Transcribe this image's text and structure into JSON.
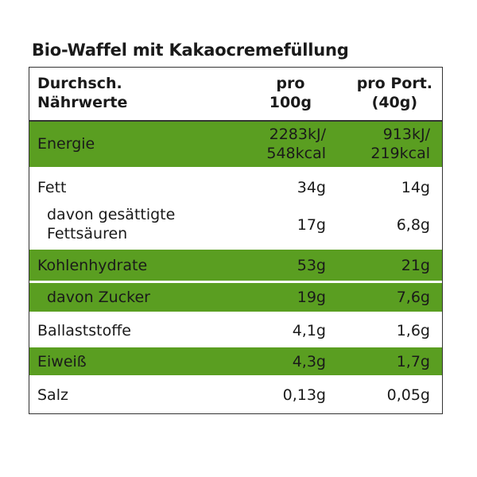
{
  "title": "Bio-Waffel mit Kakaocremefüllung",
  "header": {
    "col0": [
      "Durchsch.",
      "Nährwerte"
    ],
    "col1": [
      "pro",
      "100g"
    ],
    "col2": [
      "pro Port.",
      "(40g)"
    ]
  },
  "rows": [
    {
      "name": [
        "Energie"
      ],
      "v100": [
        "2283kJ/",
        "548kcal"
      ],
      "vport": [
        "913kJ/",
        "219kcal"
      ],
      "highlight": true
    },
    {
      "name": [
        "Fett"
      ],
      "v100": [
        "34g"
      ],
      "vport": [
        "14g"
      ],
      "highlight": false
    },
    {
      "name": [
        "davon gesättigte",
        "Fettsäuren"
      ],
      "v100": [
        "17g"
      ],
      "vport": [
        "6,8g"
      ],
      "highlight": false,
      "indent": true
    },
    {
      "name": [
        "Kohlenhydrate"
      ],
      "v100": [
        "53g"
      ],
      "vport": [
        "21g"
      ],
      "highlight": true
    },
    {
      "name": [
        "davon Zucker"
      ],
      "v100": [
        "19g"
      ],
      "vport": [
        "7,6g"
      ],
      "highlight": true,
      "indent": true
    },
    {
      "name": [
        "Ballaststoffe"
      ],
      "v100": [
        "4,1g"
      ],
      "vport": [
        "1,6g"
      ],
      "highlight": false
    },
    {
      "name": [
        "Eiweiß"
      ],
      "v100": [
        "4,3g"
      ],
      "vport": [
        "1,7g"
      ],
      "highlight": true
    },
    {
      "name": [
        "Salz"
      ],
      "v100": [
        "0,13g"
      ],
      "vport": [
        "0,05g"
      ],
      "highlight": false
    }
  ],
  "colors": {
    "highlight": "#5a9e21",
    "border": "#333333"
  }
}
